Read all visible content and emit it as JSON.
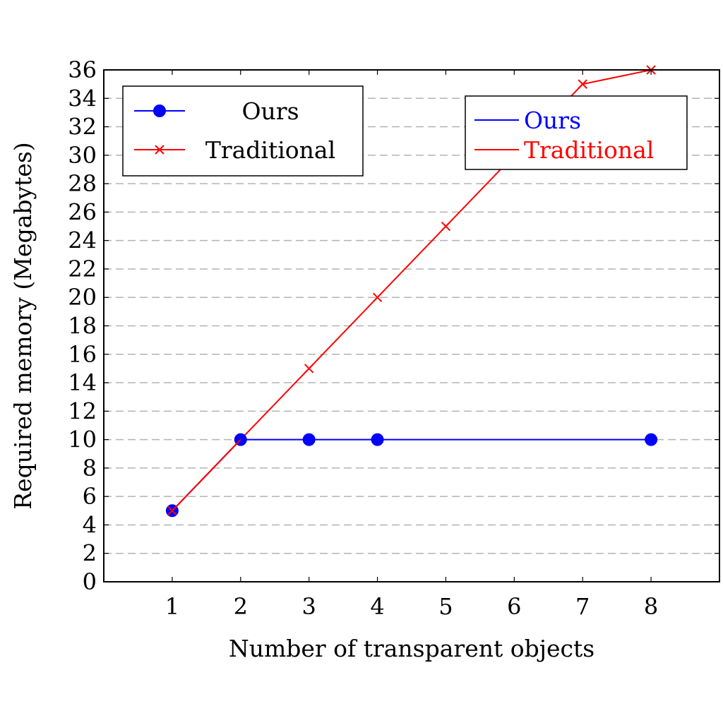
{
  "chart_data": {
    "type": "line",
    "title": "",
    "xlabel": "Number of transparent objects",
    "ylabel": "Required memory (Megabytes)",
    "xlim": [
      0,
      9
    ],
    "ylim": [
      0,
      36
    ],
    "x_ticks": [
      "1",
      "2",
      "3",
      "4",
      "5",
      "6",
      "7",
      "8"
    ],
    "y_ticks": [
      "0",
      "2",
      "4",
      "6",
      "8",
      "10",
      "12",
      "14",
      "16",
      "18",
      "20",
      "22",
      "24",
      "26",
      "28",
      "30",
      "32",
      "34",
      "36"
    ],
    "grid": "horizontal dashed",
    "series": [
      {
        "name": "Ours",
        "color": "#0000ff",
        "marker": "filled-circle",
        "x": [
          1,
          2,
          3,
          4,
          8
        ],
        "y": [
          5,
          10,
          10,
          10,
          10
        ]
      },
      {
        "name": "Traditional",
        "color": "#ff0000",
        "marker": "x-cross",
        "x": [
          1,
          2,
          3,
          4,
          5,
          6,
          7,
          8
        ],
        "y": [
          5,
          10,
          15,
          20,
          25,
          30,
          35,
          36
        ]
      }
    ],
    "legends": [
      {
        "placement": "top-left",
        "entries": [
          {
            "label": "Ours",
            "color": "#0000ff",
            "marker": "filled-circle",
            "text_color": "#000000"
          },
          {
            "label": "Traditional",
            "color": "#ff0000",
            "marker": "x-cross",
            "text_color": "#000000"
          }
        ]
      },
      {
        "placement": "top-right",
        "entries": [
          {
            "label": "Ours",
            "color": "#0000ff",
            "marker": "none",
            "text_color": "#0000ff"
          },
          {
            "label": "Traditional",
            "color": "#ff0000",
            "marker": "none",
            "text_color": "#ff0000"
          }
        ]
      }
    ]
  }
}
